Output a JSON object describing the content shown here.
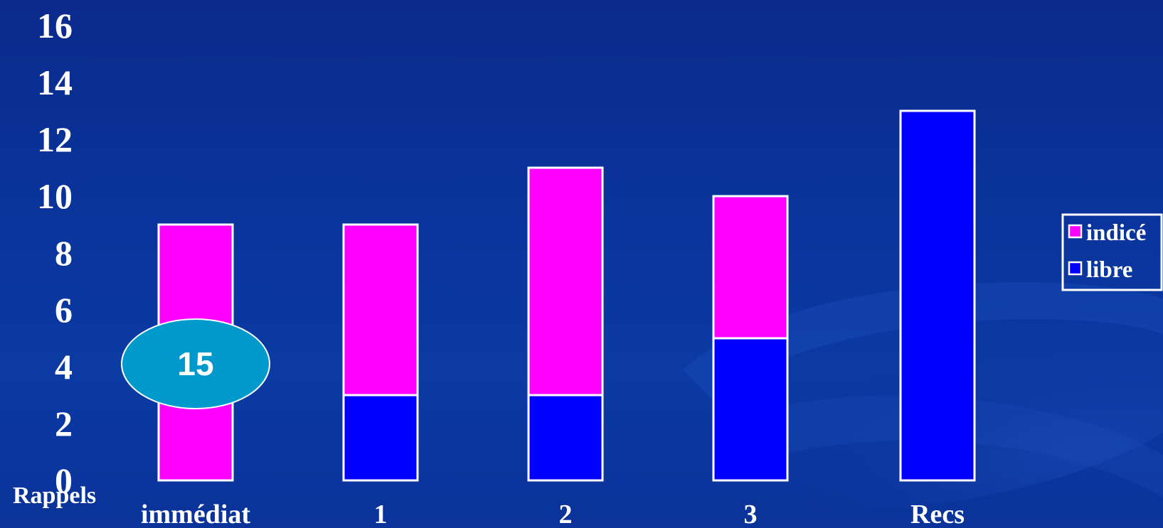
{
  "chart_data": {
    "type": "bar",
    "stacked": true,
    "categories": [
      "immédiat",
      "1",
      "2",
      "3",
      "Recs"
    ],
    "series": [
      {
        "name": "libre",
        "color": "#0000ff",
        "values": [
          0,
          3,
          3,
          5,
          13
        ]
      },
      {
        "name": "indicé",
        "color": "#ff00ff",
        "values": [
          9,
          6,
          8,
          5,
          0
        ]
      }
    ],
    "yticks": [
      "0",
      "2",
      "4",
      "6",
      "8",
      "10",
      "12",
      "14",
      "16"
    ],
    "ylim": [
      0,
      16
    ],
    "xlabel": "Rappels",
    "legend": {
      "position": "right",
      "items": [
        "indicé",
        "libre"
      ]
    },
    "grid": false,
    "annotation": {
      "text": "15",
      "category": "immédiat",
      "y": 4.1,
      "color": "#0099cc"
    }
  }
}
